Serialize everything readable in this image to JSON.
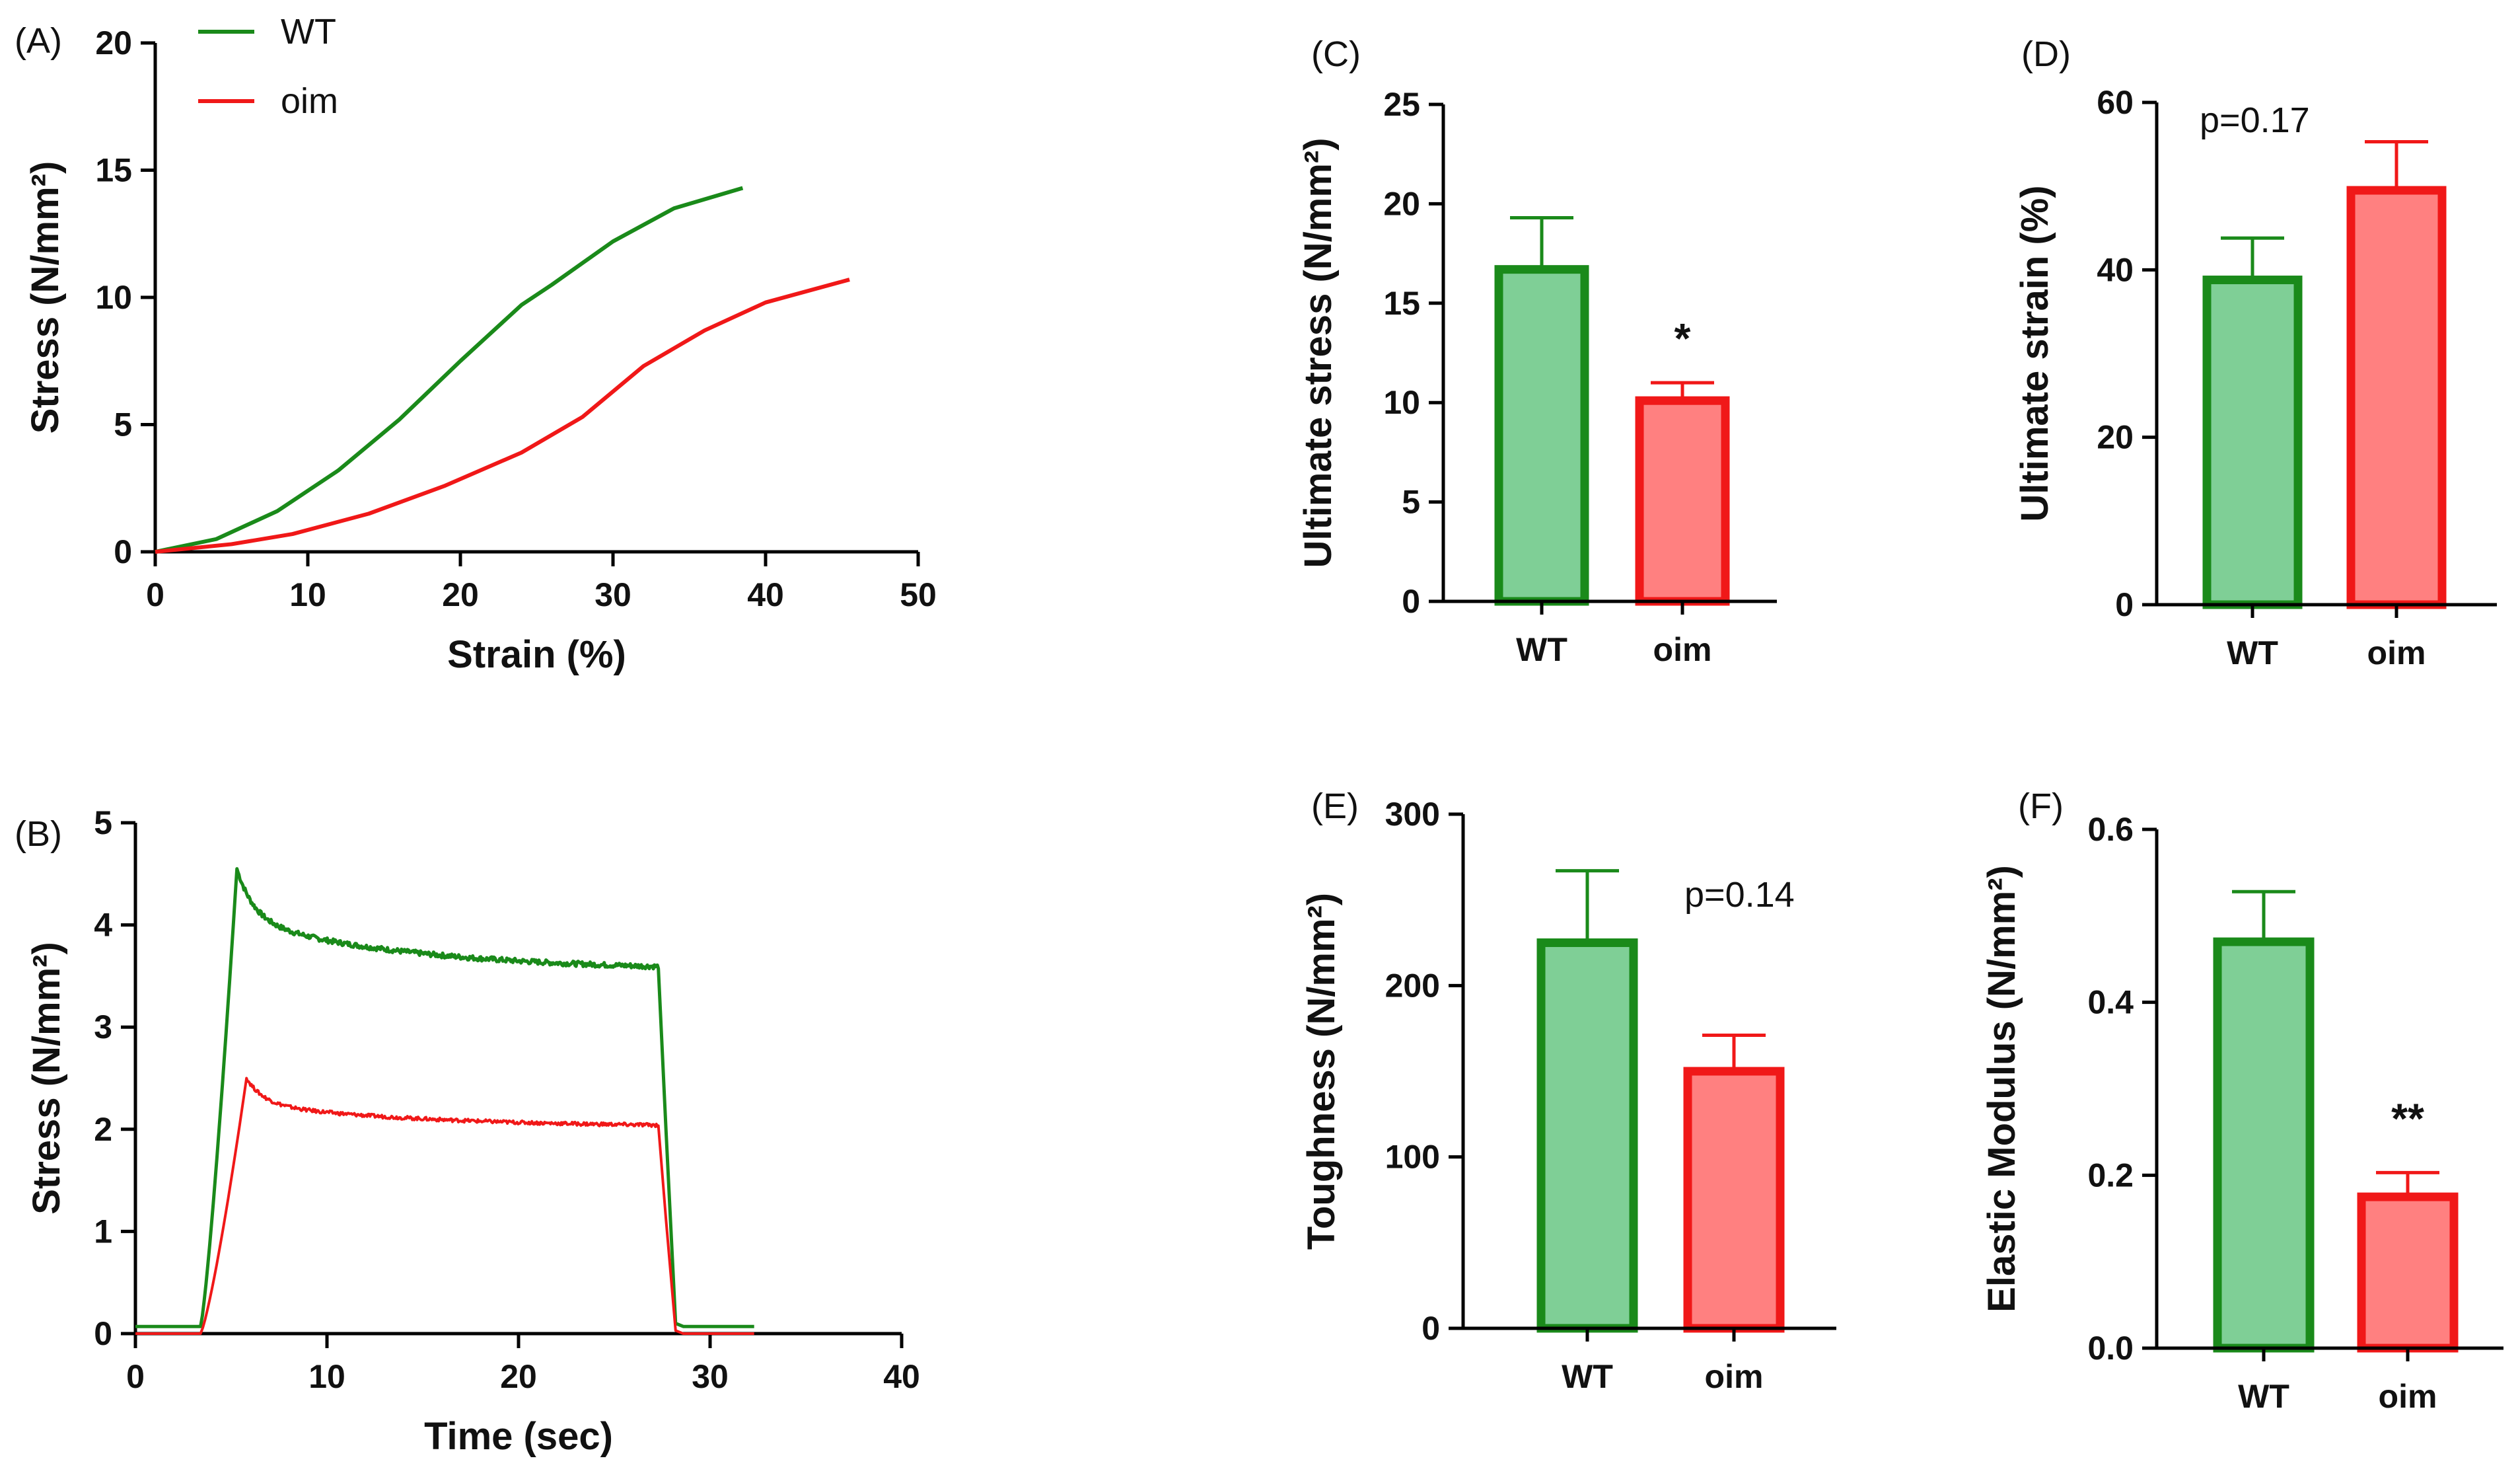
{
  "colors": {
    "wt": "#1a8a1a",
    "oim": "#f01818",
    "wt_fill": "#7fcf96",
    "oim_fill": "#ff8080",
    "axis": "#000000"
  },
  "chart_data": [
    {
      "id": "A",
      "panel_label": "(A)",
      "type": "line",
      "xlabel": "Strain (%)",
      "ylabel": "Stress (N/mm²)",
      "xlim": [
        0,
        50
      ],
      "ylim": [
        0,
        20
      ],
      "xticks": [
        0,
        10,
        20,
        30,
        40,
        50
      ],
      "yticks": [
        0,
        5,
        10,
        15,
        20
      ],
      "legend": {
        "placement": "top-left",
        "entries": [
          "WT",
          "oim"
        ]
      },
      "series": [
        {
          "name": "WT",
          "color_key": "wt",
          "x": [
            0,
            4,
            8,
            12,
            16,
            20,
            24,
            26,
            30,
            34,
            38.5
          ],
          "y": [
            0,
            0.5,
            1.6,
            3.2,
            5.2,
            7.5,
            9.7,
            10.5,
            12.2,
            13.5,
            14.3
          ]
        },
        {
          "name": "oim",
          "color_key": "oim",
          "x": [
            0,
            5,
            9,
            14,
            19,
            24,
            28,
            32,
            36,
            40,
            45.5
          ],
          "y": [
            0,
            0.3,
            0.7,
            1.5,
            2.6,
            3.9,
            5.3,
            7.3,
            8.7,
            9.8,
            10.7
          ]
        }
      ]
    },
    {
      "id": "B",
      "panel_label": "(B)",
      "type": "line",
      "xlabel": "Time (sec)",
      "ylabel": "Stress (N/mm²)",
      "xlim": [
        0,
        40
      ],
      "ylim": [
        0,
        5
      ],
      "xticks": [
        0,
        10,
        20,
        30,
        40
      ],
      "yticks": [
        0,
        1,
        2,
        3,
        4,
        5
      ],
      "series": [
        {
          "name": "WT",
          "color_key": "wt",
          "peak_time": 5.3,
          "peak": 4.55,
          "plateau": [
            4.05,
            3.55
          ],
          "drop_time": 27.3,
          "end_time": 32.3,
          "base": 0.07
        },
        {
          "name": "oim",
          "color_key": "oim",
          "peak_time": 5.8,
          "peak": 2.5,
          "plateau": [
            2.25,
            2.02
          ],
          "drop_time": 27.3,
          "end_time": 32.3,
          "base": 0.0
        }
      ]
    },
    {
      "id": "C",
      "panel_label": "(C)",
      "type": "bar",
      "ylabel": "Ultimate stress (N/mm²)",
      "ylim": [
        0,
        25
      ],
      "yticks": [
        0,
        5,
        10,
        15,
        20,
        25
      ],
      "categories": [
        "WT",
        "oim"
      ],
      "values": [
        16.7,
        10.1
      ],
      "errors": [
        2.6,
        0.9
      ],
      "annotation": "*",
      "annotation_target": "oim",
      "annotation_type": "star"
    },
    {
      "id": "D",
      "panel_label": "(D)",
      "type": "bar",
      "ylabel": "Ultimate strain (%)",
      "ylim": [
        0,
        60
      ],
      "yticks": [
        0,
        20,
        40,
        60
      ],
      "categories": [
        "WT",
        "oim"
      ],
      "values": [
        38.8,
        49.5
      ],
      "errors": [
        5.0,
        5.8
      ],
      "annotation": "p=0.17",
      "annotation_type": "text",
      "annotation_pos": "top-left"
    },
    {
      "id": "E",
      "panel_label": "(E)",
      "type": "bar",
      "ylabel": "Toughness (N/mm²)",
      "ylim": [
        0,
        300
      ],
      "yticks": [
        0,
        100,
        200,
        300
      ],
      "categories": [
        "WT",
        "oim"
      ],
      "values": [
        225,
        150
      ],
      "errors": [
        42,
        21
      ],
      "annotation": "p=0.14",
      "annotation_type": "text",
      "annotation_pos": "top-right"
    },
    {
      "id": "F",
      "panel_label": "(F)",
      "type": "bar",
      "ylabel": "Elastic Modulus (N/mm²)",
      "ylim": [
        0,
        0.6
      ],
      "yticks": [
        "0.0",
        "0.2",
        "0.4",
        "0.6"
      ],
      "categories": [
        "WT",
        "oim"
      ],
      "values": [
        0.47,
        0.175
      ],
      "errors": [
        0.058,
        0.028
      ],
      "annotation": "**",
      "annotation_target": "oim",
      "annotation_type": "star"
    }
  ]
}
